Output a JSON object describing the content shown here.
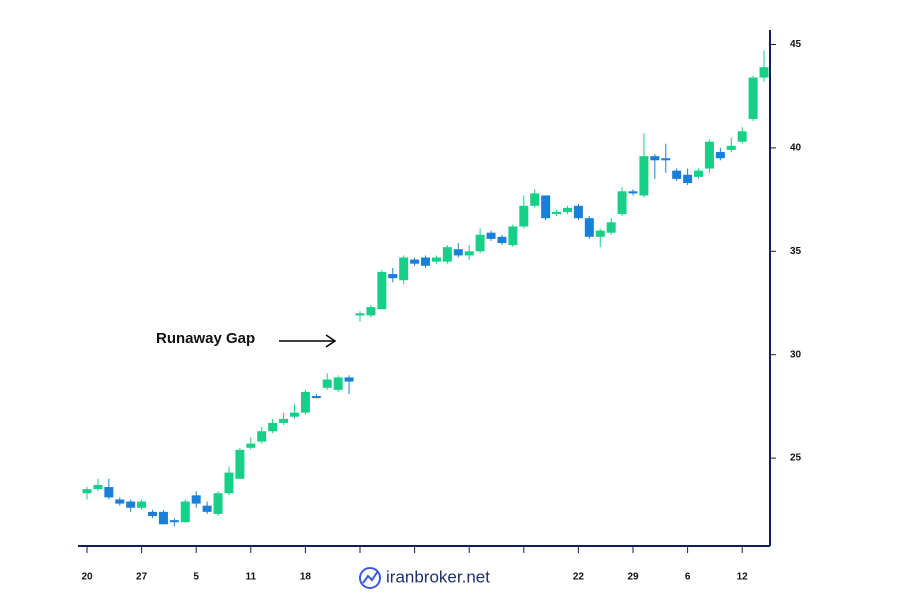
{
  "chart_data": {
    "type": "candlestick",
    "annotation": "Runaway Gap",
    "watermark": "iranbroker.net",
    "categories": [
      "20",
      null,
      null,
      null,
      null,
      "27",
      null,
      null,
      null,
      null,
      "5",
      null,
      null,
      null,
      null,
      "11",
      null,
      null,
      null,
      null,
      "18",
      null,
      null,
      null,
      null,
      null,
      null,
      null,
      null,
      null,
      null,
      null,
      null,
      null,
      null,
      null,
      null,
      null,
      null,
      null,
      null,
      null,
      null,
      null,
      null,
      "22",
      null,
      null,
      null,
      null,
      "29",
      null,
      null,
      null,
      null,
      "6",
      null,
      null,
      null,
      null,
      "12",
      null,
      null
    ],
    "open": [
      23.3,
      23.5,
      23.6,
      23.0,
      22.9,
      22.6,
      22.4,
      22.4,
      22.0,
      21.9,
      23.2,
      22.7,
      22.3,
      23.3,
      24.0,
      25.5,
      25.8,
      26.3,
      26.7,
      27.0,
      27.2,
      28.0,
      28.4,
      28.3,
      28.9,
      31.9,
      31.9,
      32.2,
      33.9,
      33.6,
      34.6,
      34.7,
      34.5,
      34.5,
      35.1,
      34.8,
      35.0,
      35.9,
      35.7,
      35.3,
      36.2,
      37.2,
      37.7,
      36.8,
      36.9,
      37.2,
      36.6,
      35.7,
      35.9,
      36.8,
      37.9,
      37.7,
      39.6,
      39.5,
      38.9,
      38.7,
      38.6,
      39.0,
      39.8,
      39.9,
      40.3,
      41.4,
      43.4
    ],
    "high": [
      23.6,
      24.0,
      24.0,
      23.1,
      23.0,
      23.0,
      22.5,
      22.5,
      22.1,
      23.0,
      23.4,
      22.9,
      23.4,
      24.6,
      25.5,
      26.0,
      26.5,
      26.9,
      27.2,
      27.6,
      28.3,
      28.1,
      29.1,
      29.0,
      29.0,
      32.1,
      32.4,
      34.1,
      34.2,
      34.8,
      34.7,
      34.8,
      34.8,
      35.3,
      35.4,
      35.3,
      36.1,
      36.0,
      35.8,
      36.3,
      37.7,
      38.0,
      37.7,
      37.0,
      37.2,
      37.3,
      36.7,
      36.1,
      36.6,
      38.1,
      38.0,
      40.7,
      39.7,
      40.2,
      39.0,
      39.0,
      39.0,
      40.4,
      40.0,
      40.5,
      41.0,
      43.5,
      44.7
    ],
    "low": [
      23.0,
      23.4,
      23.0,
      22.7,
      22.4,
      22.5,
      22.1,
      21.8,
      21.7,
      21.9,
      22.6,
      22.3,
      22.2,
      23.2,
      24.0,
      25.4,
      25.7,
      26.2,
      26.6,
      26.9,
      27.1,
      27.9,
      28.3,
      28.2,
      28.1,
      31.6,
      31.8,
      32.2,
      33.5,
      33.4,
      34.3,
      34.2,
      34.4,
      34.4,
      34.7,
      34.6,
      34.9,
      35.5,
      35.3,
      35.2,
      36.1,
      37.1,
      36.5,
      36.7,
      36.8,
      36.5,
      35.6,
      35.2,
      35.8,
      36.7,
      37.7,
      37.6,
      38.5,
      38.8,
      38.4,
      38.2,
      38.5,
      38.8,
      39.4,
      39.8,
      40.2,
      41.3,
      43.2
    ],
    "close": [
      23.5,
      23.7,
      23.1,
      22.8,
      22.6,
      22.9,
      22.2,
      21.8,
      21.9,
      22.9,
      22.8,
      22.4,
      23.3,
      24.3,
      25.4,
      25.7,
      26.3,
      26.7,
      26.9,
      27.2,
      28.2,
      27.9,
      28.8,
      28.9,
      28.7,
      32.0,
      32.3,
      34.0,
      33.7,
      34.7,
      34.4,
      34.3,
      34.7,
      35.2,
      34.8,
      35.0,
      35.8,
      35.6,
      35.4,
      36.2,
      37.2,
      37.8,
      36.6,
      36.9,
      37.1,
      36.6,
      35.7,
      36.0,
      36.4,
      37.9,
      37.8,
      39.6,
      39.4,
      39.4,
      38.5,
      38.3,
      38.9,
      40.3,
      39.5,
      40.1,
      40.8,
      43.4,
      43.9
    ],
    "up_color": "#17cf86",
    "down_color": "#1a7fd8",
    "ylim": [
      20.75,
      45.7
    ],
    "yticks": [
      25,
      30,
      35,
      40,
      45
    ]
  }
}
